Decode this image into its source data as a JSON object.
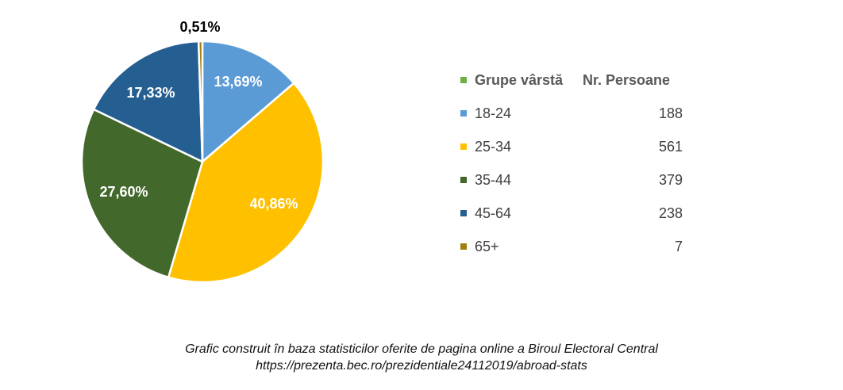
{
  "chart_data": {
    "type": "pie",
    "slices": [
      {
        "label": "18-24",
        "value": 188,
        "percent_label": "13,69%",
        "color": "#5B9BD5",
        "text_color": "#ffffff"
      },
      {
        "label": "25-34",
        "value": 561,
        "percent_label": "40,86%",
        "color": "#FFC000",
        "text_color": "#ffffff"
      },
      {
        "label": "35-44",
        "value": 379,
        "percent_label": "27,60%",
        "color": "#43682B",
        "text_color": "#ffffff"
      },
      {
        "label": "45-64",
        "value": 238,
        "percent_label": "17,33%",
        "color": "#255E91",
        "text_color": "#ffffff"
      },
      {
        "label": "65+",
        "value": 7,
        "percent_label": "0,51%",
        "color": "#9E7E0E",
        "text_color": "#000000"
      }
    ],
    "legend": {
      "header_label": "Grupe vârstă",
      "header_value": "Nr. Persoane",
      "header_color": "#70AD47",
      "placement": "right"
    }
  },
  "footer": {
    "line1": "Grafic construit în baza statisticilor oferite de pagina online a Biroul Electoral Central",
    "line2": "https://prezenta.bec.ro/prezidentiale24112019/abroad-stats"
  }
}
